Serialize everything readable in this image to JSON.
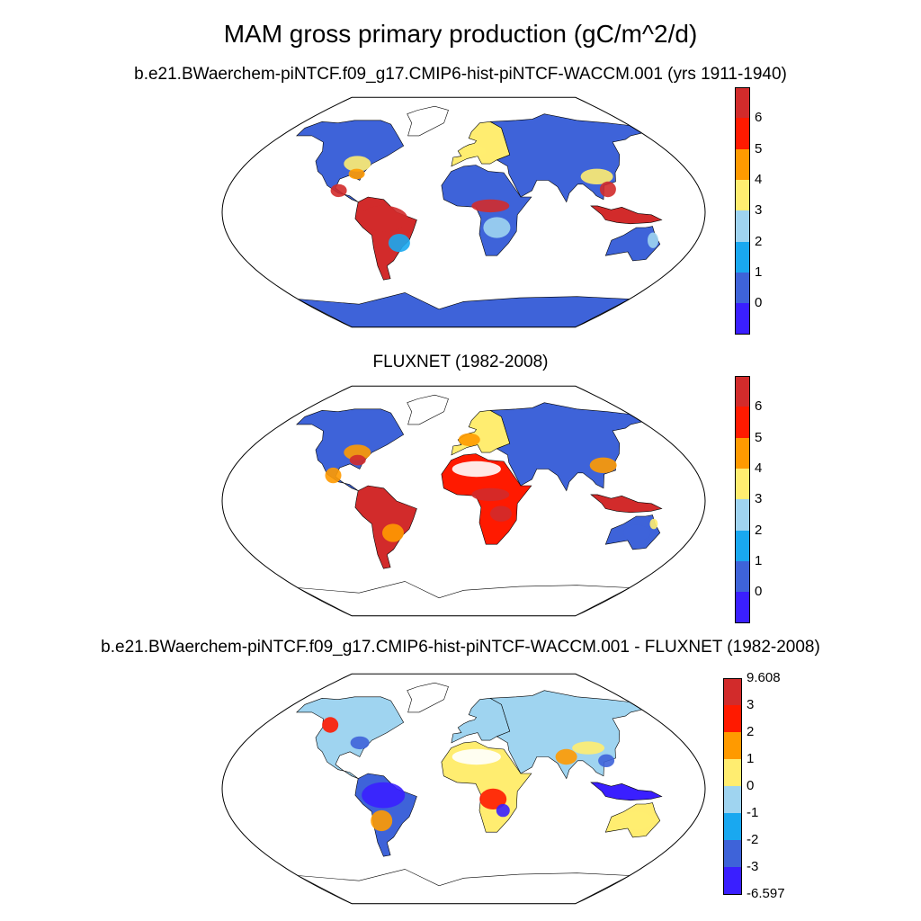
{
  "title": "MAM gross primary production (gC/m^2/d)",
  "panels": [
    {
      "title": "b.e21.BWaerchem-piNTCF.f09_g17.CMIP6-hist-piNTCF-WACCM.001 (yrs 1911-1940)",
      "type": "model",
      "colorbar": {
        "labels": [
          "6",
          "5",
          "4",
          "3",
          "2",
          "1",
          "0"
        ],
        "colors": [
          "#d22b2b",
          "#ff1a00",
          "#ff9a00",
          "#ffed70",
          "#9fd4f0",
          "#19a8f0",
          "#3e63d9",
          "#3a1fff"
        ]
      }
    },
    {
      "title": "FLUXNET (1982-2008)",
      "type": "obs",
      "colorbar": {
        "labels": [
          "6",
          "5",
          "4",
          "3",
          "2",
          "1",
          "0"
        ],
        "colors": [
          "#d22b2b",
          "#ff1a00",
          "#ff9a00",
          "#ffed70",
          "#9fd4f0",
          "#19a8f0",
          "#3e63d9",
          "#3a1fff"
        ]
      }
    },
    {
      "title": "b.e21.BWaerchem-piNTCF.f09_g17.CMIP6-hist-piNTCF-WACCM.001 - FLUXNET (1982-2008)",
      "type": "diff",
      "colorbar": {
        "labels": [
          "9.608",
          "3",
          "2",
          "1",
          "0",
          "-1",
          "-2",
          "-3",
          "-6.597"
        ],
        "colors": [
          "#d22b2b",
          "#ff1a00",
          "#ff9a00",
          "#ffed70",
          "#9fd4f0",
          "#19a8f0",
          "#3e63d9",
          "#3a1fff"
        ]
      }
    }
  ]
}
